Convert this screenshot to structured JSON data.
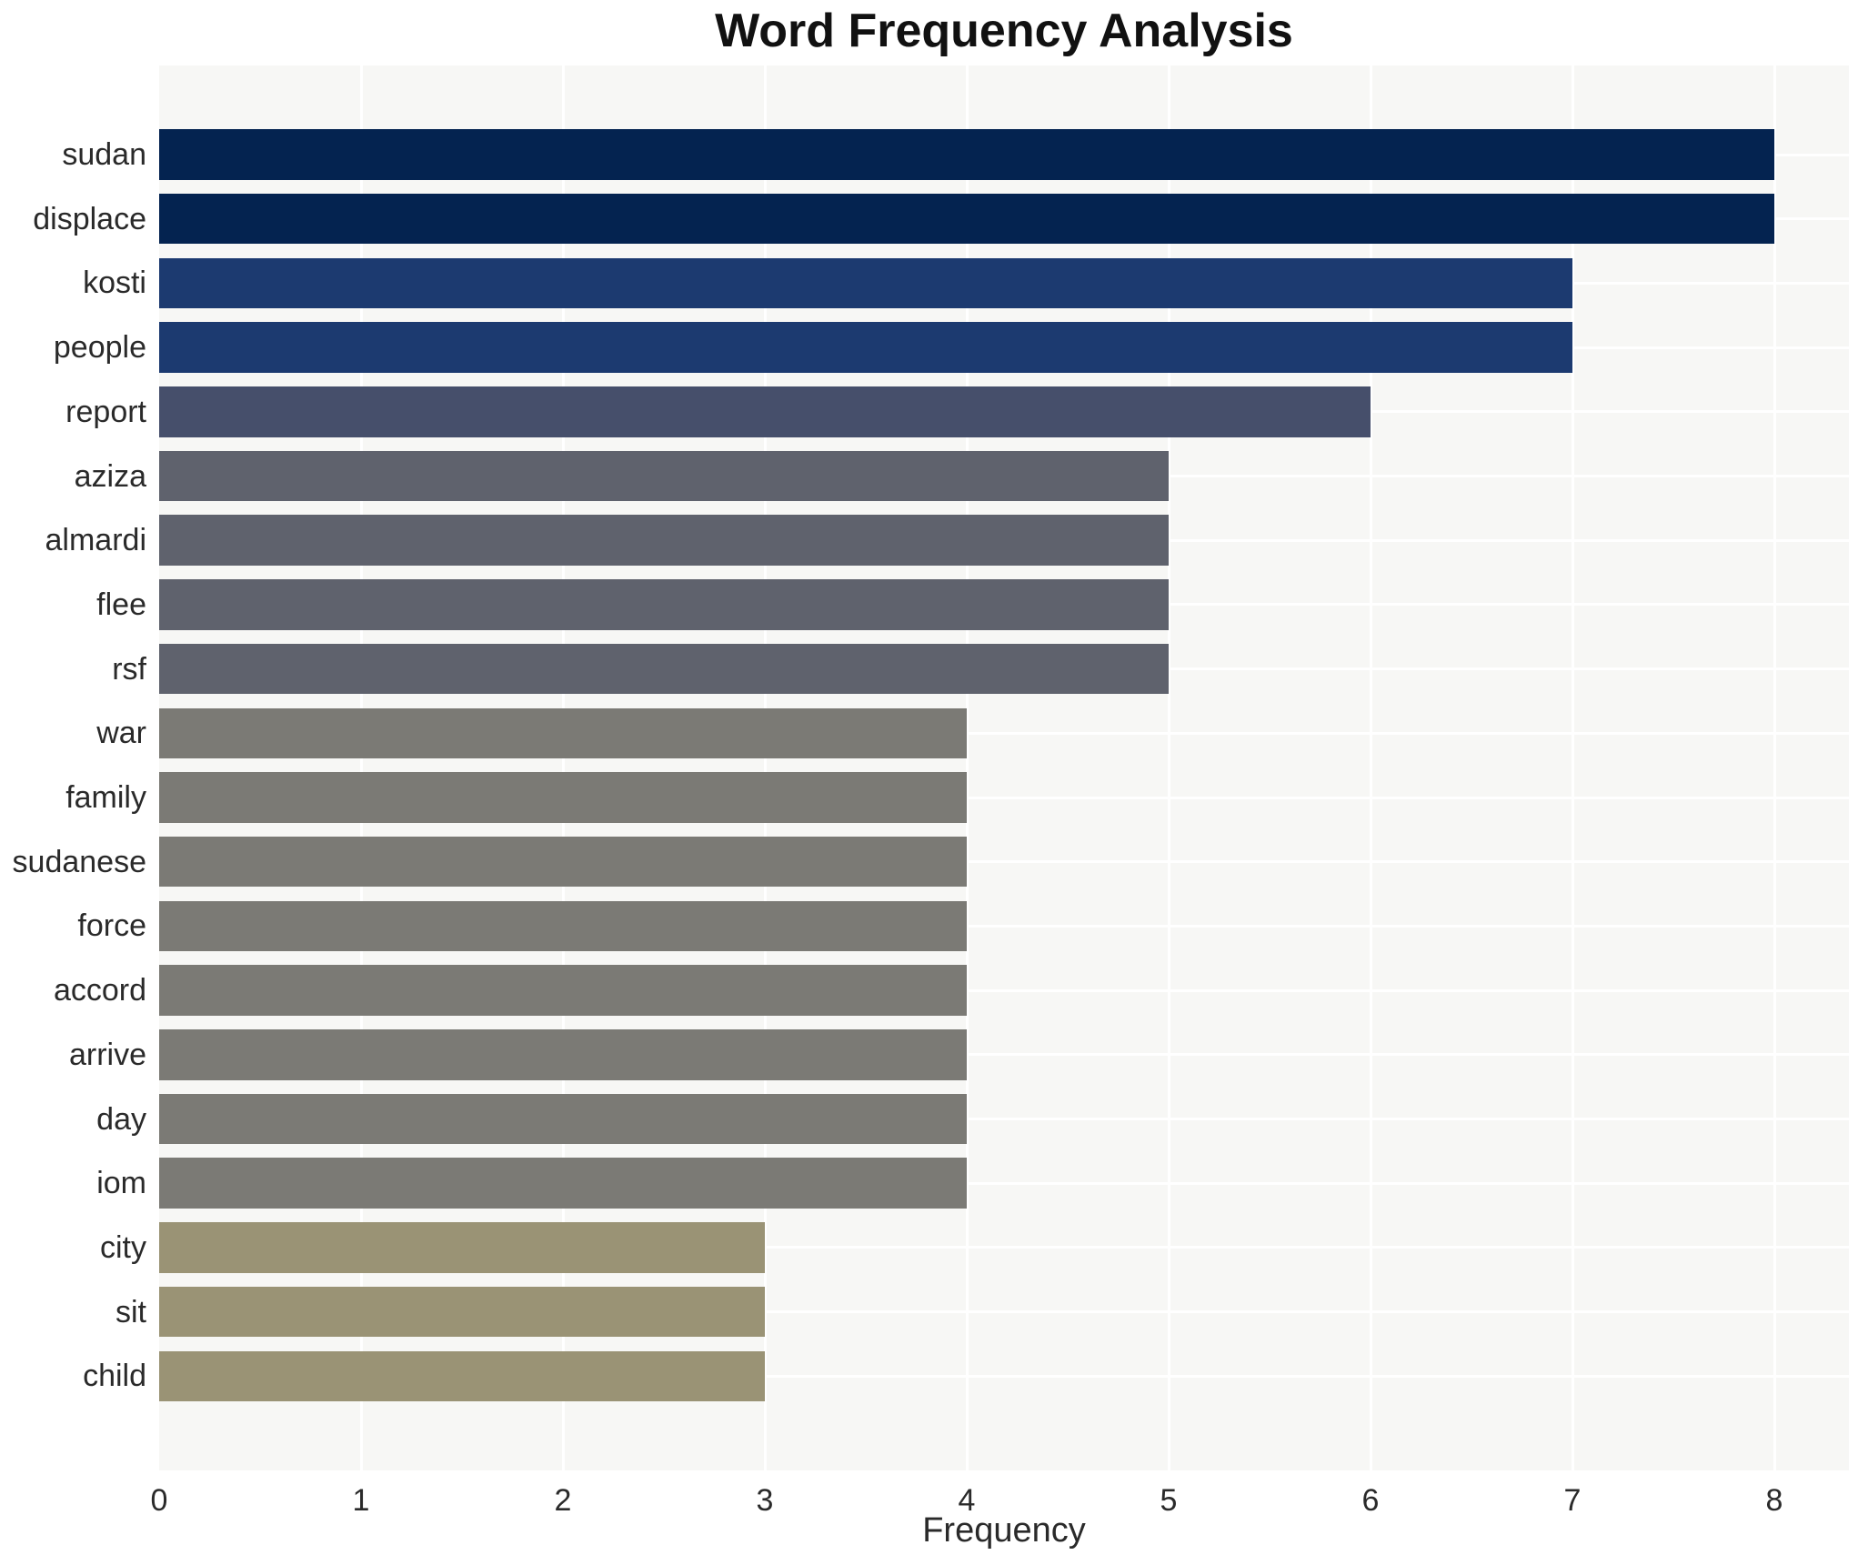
{
  "chart_data": {
    "type": "bar",
    "orientation": "horizontal",
    "title": "Word Frequency Analysis",
    "xlabel": "Frequency",
    "ylabel": "",
    "categories": [
      "sudan",
      "displace",
      "kosti",
      "people",
      "report",
      "aziza",
      "almardi",
      "flee",
      "rsf",
      "war",
      "family",
      "sudanese",
      "force",
      "accord",
      "arrive",
      "day",
      "iom",
      "city",
      "sit",
      "child"
    ],
    "values": [
      8,
      8,
      7,
      7,
      6,
      5,
      5,
      5,
      5,
      4,
      4,
      4,
      4,
      4,
      4,
      4,
      4,
      3,
      3,
      3
    ],
    "bar_colors": [
      "#042350",
      "#042350",
      "#1c3a70",
      "#1c3a70",
      "#464f6b",
      "#5f626d",
      "#5f626d",
      "#5f626d",
      "#5f626d",
      "#7b7a75",
      "#7b7a75",
      "#7b7a75",
      "#7b7a75",
      "#7b7a75",
      "#7b7a75",
      "#7b7a75",
      "#7b7a75",
      "#9a9375",
      "#9a9375",
      "#9a9375"
    ],
    "xticks": [
      0,
      1,
      2,
      3,
      4,
      5,
      6,
      7,
      8
    ],
    "xlim": [
      0,
      8.37
    ],
    "grid": true,
    "grid_color": "#ffffff",
    "plot_bg": "#f7f7f5",
    "legend": false
  }
}
